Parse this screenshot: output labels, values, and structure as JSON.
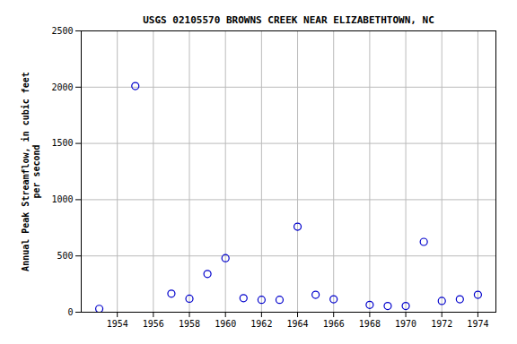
{
  "chart_data": {
    "type": "scatter",
    "title": "USGS 02105570 BROWNS CREEK NEAR ELIZABETHTOWN, NC",
    "ylabel": "Annual Peak Streamflow, in cubic feet\nper second",
    "x": [
      1953,
      1955,
      1957,
      1958,
      1959,
      1960,
      1961,
      1962,
      1963,
      1964,
      1965,
      1966,
      1968,
      1969,
      1970,
      1971,
      1972,
      1973,
      1974
    ],
    "values": [
      30,
      2010,
      165,
      120,
      340,
      480,
      125,
      110,
      110,
      760,
      155,
      115,
      65,
      55,
      55,
      625,
      100,
      115,
      155
    ],
    "xlim": [
      1952,
      1975
    ],
    "ylim": [
      0,
      2500
    ],
    "xticks": [
      1954,
      1956,
      1958,
      1960,
      1962,
      1964,
      1966,
      1968,
      1970,
      1972,
      1974
    ],
    "yticks": [
      0,
      500,
      1000,
      1500,
      2000,
      2500
    ],
    "color": "#0000cc",
    "marker": "circle",
    "grid": true
  }
}
